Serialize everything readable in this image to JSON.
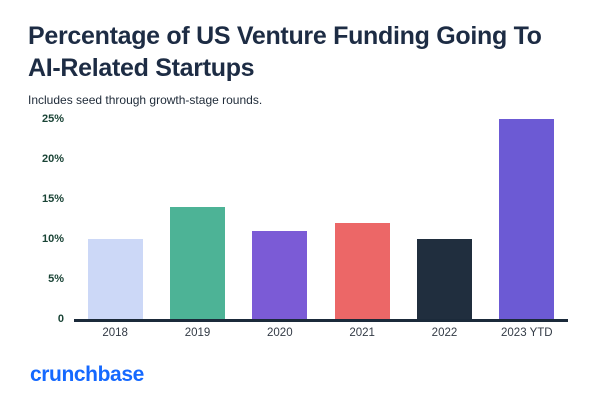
{
  "header": {
    "title": "Percentage of US Venture Funding Going To AI-Related Startups",
    "subtitle": "Includes seed through growth-stage rounds."
  },
  "footer": {
    "brand": "crunchbase"
  },
  "colors": {
    "title_text": "#1d2c44",
    "y_axis_text": "#1a4436",
    "x_axis_text": "#333b46",
    "baseline": "#1b2a3a",
    "brand_blue": "#1569ff",
    "background": "#ffffff"
  },
  "chart_data": {
    "type": "bar",
    "title": "Percentage of US Venture Funding Going To AI-Related Startups",
    "subtitle": "Includes seed through growth-stage rounds.",
    "categories": [
      "2018",
      "2019",
      "2020",
      "2021",
      "2022",
      "2023 YTD"
    ],
    "values": [
      10,
      14,
      11,
      12,
      10,
      25
    ],
    "bar_colors": [
      "#ccd8f7",
      "#4db396",
      "#7b5bd6",
      "#ec6767",
      "#202e3e",
      "#6c5ad4"
    ],
    "xlabel": "",
    "ylabel": "",
    "ylim": [
      0,
      25
    ],
    "yticks": [
      0,
      5,
      10,
      15,
      20,
      25
    ],
    "ytick_labels": [
      "0",
      "5%",
      "10%",
      "15%",
      "20%",
      "25%"
    ],
    "grid": false,
    "legend": false,
    "source": "crunchbase"
  }
}
